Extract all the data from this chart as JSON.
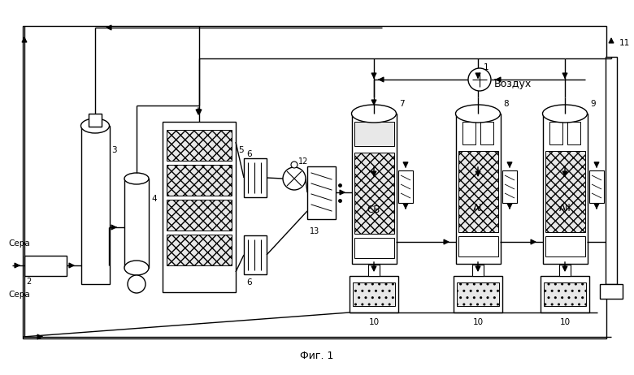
{
  "title": "Фиг. 1",
  "bg_color": "#ffffff",
  "vozdukh_text": "Воздух",
  "sera_text": "Сера",
  "figsize": [
    7.8,
    4.62
  ],
  "dpi": 100
}
